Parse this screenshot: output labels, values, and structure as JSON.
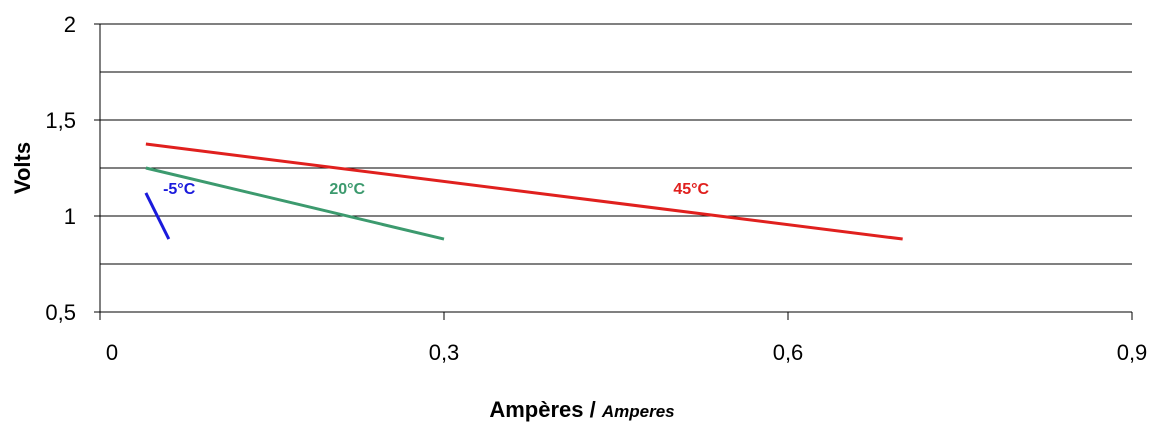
{
  "chart_data": {
    "type": "line",
    "xlabel": "Ampères / ",
    "xlabel_italic": "Amperes",
    "ylabel": "Volts",
    "xlim": [
      0,
      0.9
    ],
    "ylim": [
      0.5,
      2
    ],
    "x_ticks": [
      0,
      0.3,
      0.6,
      0.9
    ],
    "x_tick_labels": [
      "0",
      "0,3",
      "0,6",
      "0,9"
    ],
    "y_ticks": [
      0.5,
      1,
      1.5,
      2
    ],
    "y_tick_labels": [
      "0,5",
      "1",
      "1,5",
      "2"
    ],
    "y_gridlines": [
      0.75,
      1,
      1.25,
      1.5,
      1.75,
      2
    ],
    "grid": true,
    "legend": "none",
    "series": [
      {
        "name": "-5°C",
        "color": "#1a1adc",
        "x": [
          0.04,
          0.06
        ],
        "y": [
          1.12,
          0.88
        ],
        "label_at": [
          0.055,
          1.115
        ]
      },
      {
        "name": "20°C",
        "color": "#3c9a6e",
        "x": [
          0.04,
          0.3
        ],
        "y": [
          1.25,
          0.88
        ],
        "label_at": [
          0.2,
          1.115
        ]
      },
      {
        "name": "45°C",
        "color": "#e0201e",
        "x": [
          0.04,
          0.7
        ],
        "y": [
          1.375,
          0.88
        ],
        "label_at": [
          0.5,
          1.115
        ]
      }
    ]
  }
}
